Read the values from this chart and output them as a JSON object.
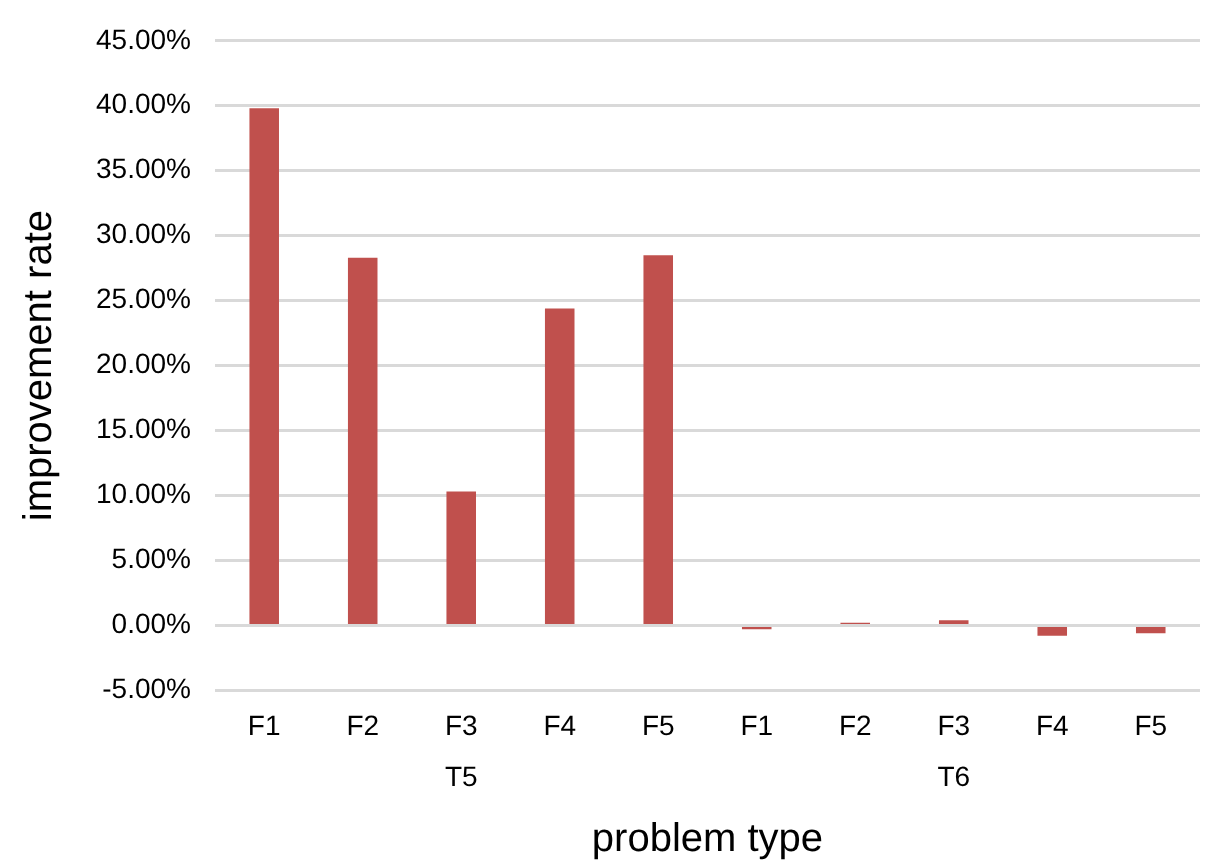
{
  "chart_data": {
    "type": "bar",
    "xlabel": "problem type",
    "ylabel": "improvement rate",
    "categories": [
      "F1",
      "F2",
      "F3",
      "F4",
      "F5",
      "F1",
      "F2",
      "F3",
      "F4",
      "F5"
    ],
    "values": [
      39.8,
      28.3,
      10.3,
      24.4,
      28.5,
      -0.3,
      0.2,
      0.4,
      -0.8,
      -0.6
    ],
    "color": "#c0504d",
    "ylim": [
      -5,
      45
    ],
    "yticks": [
      {
        "value": -5,
        "label": "-5.00%"
      },
      {
        "value": 0,
        "label": "0.00%"
      },
      {
        "value": 5,
        "label": "5.00%"
      },
      {
        "value": 10,
        "label": "10.00%"
      },
      {
        "value": 15,
        "label": "15.00%"
      },
      {
        "value": 20,
        "label": "20.00%"
      },
      {
        "value": 25,
        "label": "25.00%"
      },
      {
        "value": 30,
        "label": "30.00%"
      },
      {
        "value": 35,
        "label": "35.00%"
      },
      {
        "value": 40,
        "label": "40.00%"
      },
      {
        "value": 45,
        "label": "45.00%"
      }
    ],
    "grid": "y",
    "annotations": [
      "T5",
      "T6"
    ],
    "legend": false
  }
}
